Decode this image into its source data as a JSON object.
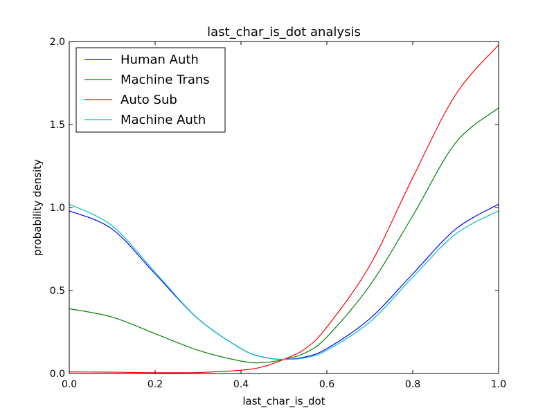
{
  "chart_data": {
    "type": "line",
    "title": "last_char_is_dot analysis",
    "xlabel": "last_char_is_dot",
    "ylabel": "probability density",
    "xlim": [
      0.0,
      1.0
    ],
    "ylim": [
      0.0,
      2.0
    ],
    "x_ticks": [
      "0.0",
      "0.2",
      "0.4",
      "0.6",
      "0.8",
      "1.0"
    ],
    "y_ticks": [
      "0.0",
      "0.5",
      "1.0",
      "1.5",
      "2.0"
    ],
    "grid": false,
    "legend_position": "top-left",
    "x": [
      0.0,
      0.1,
      0.2,
      0.3,
      0.4,
      0.45,
      0.5,
      0.55,
      0.6,
      0.7,
      0.8,
      0.9,
      1.0
    ],
    "series": [
      {
        "name": "Human Auth",
        "color": "#0000ff",
        "values": [
          0.98,
          0.87,
          0.6,
          0.33,
          0.15,
          0.1,
          0.085,
          0.1,
          0.15,
          0.33,
          0.6,
          0.87,
          1.02
        ]
      },
      {
        "name": "Machine Trans",
        "color": "#008000",
        "values": [
          0.39,
          0.34,
          0.24,
          0.14,
          0.075,
          0.065,
          0.085,
          0.125,
          0.22,
          0.53,
          0.95,
          1.39,
          1.6
        ]
      },
      {
        "name": "Auto Sub",
        "color": "#ff0000",
        "values": [
          0.01,
          0.008,
          0.005,
          0.006,
          0.02,
          0.04,
          0.085,
          0.15,
          0.28,
          0.65,
          1.18,
          1.68,
          1.98
        ]
      },
      {
        "name": "Machine Auth",
        "color": "#00bfbf",
        "values": [
          1.02,
          0.89,
          0.61,
          0.33,
          0.15,
          0.1,
          0.085,
          0.095,
          0.14,
          0.31,
          0.58,
          0.84,
          0.98
        ]
      }
    ]
  }
}
